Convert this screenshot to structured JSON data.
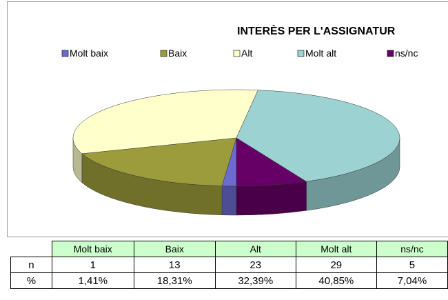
{
  "chart_data": {
    "type": "pie",
    "title": "INTERÈS PER L'ASSIGNATUR",
    "categories": [
      "Molt baix",
      "Baix",
      "Alt",
      "Molt alt",
      "ns/nc"
    ],
    "values": [
      1,
      13,
      23,
      29,
      5
    ],
    "colors": [
      "#6b6bd0",
      "#9c9c3c",
      "#ffffcc",
      "#9cd2d2",
      "#660066"
    ],
    "legend": "top"
  },
  "table": {
    "row_labels": [
      "n",
      "%"
    ],
    "percentages": [
      1.41,
      18.31,
      32.39,
      40.85,
      7.04
    ],
    "percentage_labels": [
      "1,41%",
      "18,31%",
      "32,39%",
      "40,85%",
      "7,04%"
    ]
  }
}
